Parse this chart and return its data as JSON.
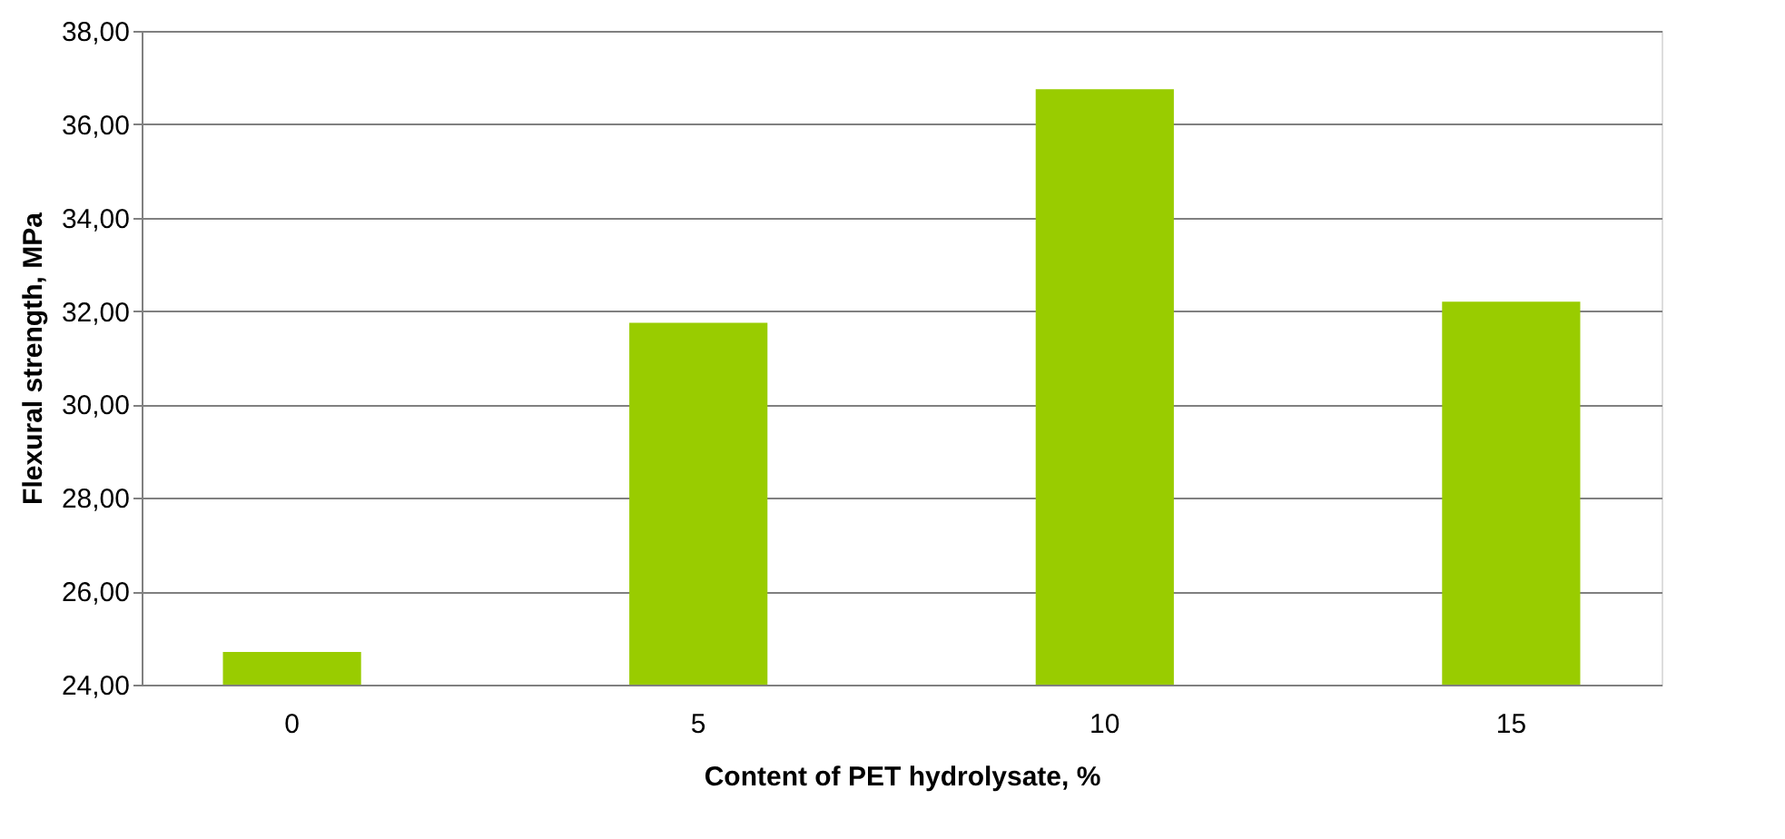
{
  "chart_data": {
    "type": "bar",
    "xlabel": "Content of PET hydrolysate, %",
    "ylabel": "Flexural strength, MPa",
    "categories": [
      "0",
      "5",
      "10",
      "15"
    ],
    "values": [
      24.7,
      31.75,
      36.75,
      32.2
    ],
    "color": "#99cc00",
    "ylim": [
      24,
      38
    ],
    "yticks": [
      {
        "value": 24,
        "label": "24,00"
      },
      {
        "value": 26,
        "label": "26,00"
      },
      {
        "value": 28,
        "label": "28,00"
      },
      {
        "value": 30,
        "label": "30,00"
      },
      {
        "value": 32,
        "label": "32,00"
      },
      {
        "value": 34,
        "label": "34,00"
      },
      {
        "value": 36,
        "label": "36,00"
      },
      {
        "value": 38,
        "label": "38,00"
      }
    ],
    "grid": "y"
  }
}
